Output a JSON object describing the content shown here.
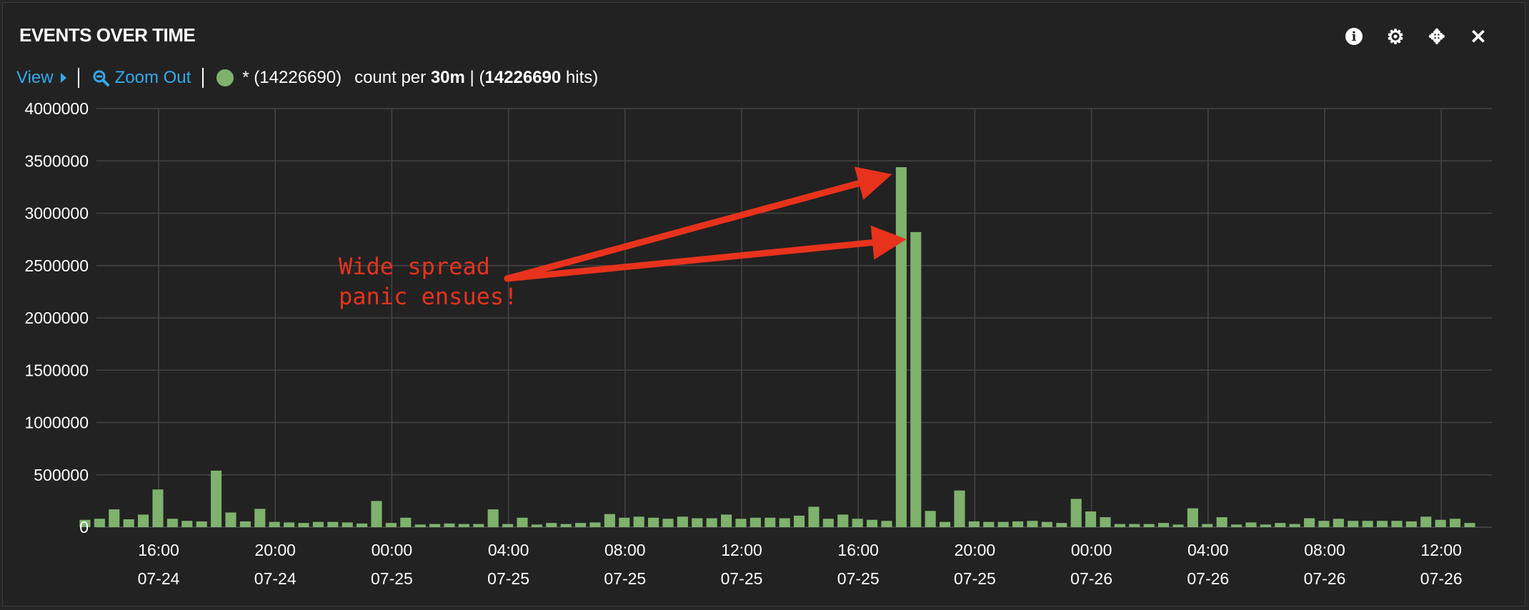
{
  "panel": {
    "title": "EVENTS OVER TIME",
    "tools": [
      {
        "name": "info-icon",
        "glyph": "i"
      },
      {
        "name": "gear-icon",
        "glyph": "⚙"
      },
      {
        "name": "move-icon",
        "glyph": "✥"
      },
      {
        "name": "close-icon",
        "glyph": "✕"
      }
    ]
  },
  "subbar": {
    "view_label": "View",
    "zoom_out_label": "Zoom Out",
    "query_label": "* (14226690)",
    "count_per_prefix": "count per",
    "interval": "30m",
    "separator_open": "| (",
    "hits_value": "14226690",
    "hits_suffix": "hits)"
  },
  "colors": {
    "accent": "#33aaee",
    "series": "#7eb26d",
    "annotation": "#e8321c",
    "grid": "#444444"
  },
  "chart_data": {
    "type": "bar",
    "title": "EVENTS OVER TIME",
    "ylim": [
      0,
      4000000
    ],
    "yticks": [
      "0",
      "500000",
      "1000000",
      "1500000",
      "2000000",
      "2500000",
      "3000000",
      "3500000",
      "4000000"
    ],
    "xticks": [
      {
        "time": "16:00",
        "date": "07-24"
      },
      {
        "time": "20:00",
        "date": "07-24"
      },
      {
        "time": "00:00",
        "date": "07-25"
      },
      {
        "time": "04:00",
        "date": "07-25"
      },
      {
        "time": "08:00",
        "date": "07-25"
      },
      {
        "time": "12:00",
        "date": "07-25"
      },
      {
        "time": "16:00",
        "date": "07-25"
      },
      {
        "time": "20:00",
        "date": "07-25"
      },
      {
        "time": "00:00",
        "date": "07-26"
      },
      {
        "time": "04:00",
        "date": "07-26"
      },
      {
        "time": "08:00",
        "date": "07-26"
      },
      {
        "time": "12:00",
        "date": "07-26"
      }
    ],
    "grid": true,
    "bucket": "30m",
    "series": [
      {
        "name": "*",
        "values": [
          70000,
          80000,
          170000,
          75000,
          120000,
          360000,
          80000,
          60000,
          55000,
          540000,
          140000,
          55000,
          175000,
          50000,
          45000,
          40000,
          50000,
          50000,
          45000,
          35000,
          250000,
          40000,
          90000,
          25000,
          30000,
          35000,
          30000,
          30000,
          170000,
          30000,
          90000,
          25000,
          40000,
          30000,
          40000,
          45000,
          125000,
          90000,
          100000,
          90000,
          80000,
          100000,
          85000,
          85000,
          120000,
          80000,
          90000,
          90000,
          85000,
          110000,
          195000,
          80000,
          120000,
          80000,
          70000,
          60000,
          3440000,
          2820000,
          155000,
          50000,
          350000,
          55000,
          50000,
          50000,
          55000,
          60000,
          50000,
          40000,
          270000,
          150000,
          95000,
          30000,
          30000,
          30000,
          40000,
          25000,
          180000,
          30000,
          95000,
          25000,
          45000,
          25000,
          40000,
          30000,
          85000,
          60000,
          80000,
          60000,
          60000,
          60000,
          60000,
          55000,
          100000,
          70000,
          80000,
          40000
        ]
      }
    ],
    "annotation": {
      "lines": [
        "Wide spread",
        "panic ensues!"
      ]
    }
  }
}
